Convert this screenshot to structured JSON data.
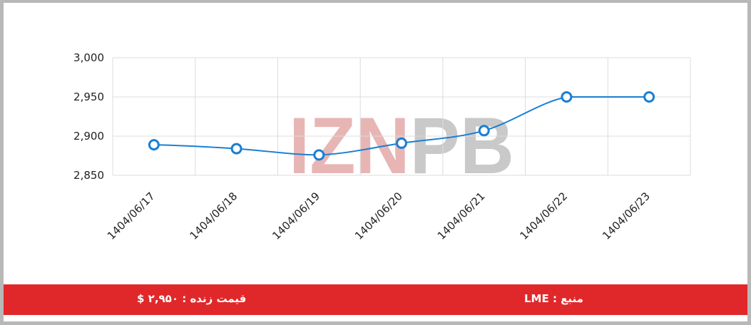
{
  "chart_data": {
    "type": "line",
    "title": "",
    "xlabel": "",
    "ylabel": "",
    "categories": [
      "1404/06/17",
      "1404/06/18",
      "1404/06/19",
      "1404/06/20",
      "1404/06/21",
      "1404/06/22",
      "1404/06/23"
    ],
    "series": [
      {
        "values": [
          2889,
          2884,
          2876,
          2891,
          2907,
          2950,
          2950
        ]
      }
    ],
    "ylim": [
      2850,
      3000
    ],
    "yticks": [
      2850,
      2900,
      2950,
      3000
    ],
    "ytick_labels": [
      "2,850",
      "2,900",
      "2,950",
      "3,000"
    ],
    "grid": true,
    "legend": "none",
    "line_color": "#1a7fd4",
    "grid_color": "#dcdcdc"
  },
  "watermark": {
    "text": "IZNPB",
    "color_left": "#e8b5b5",
    "color_right": "#c9c9c9"
  },
  "footer": {
    "live_price": "قیمت زنده : ۲,۹۵۰ $",
    "source": "منبع : LME",
    "bg_color": "#e0282b"
  }
}
